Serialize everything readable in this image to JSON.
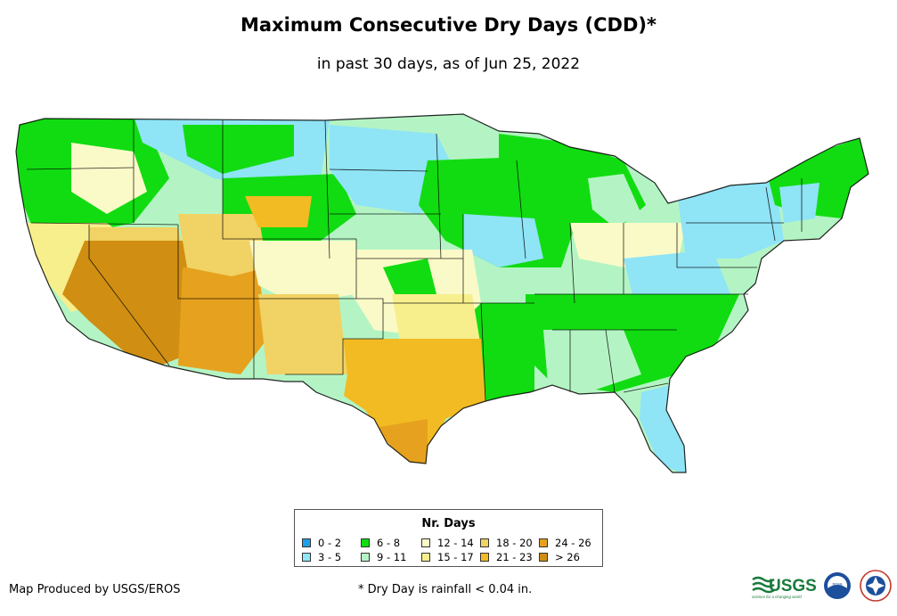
{
  "header": {
    "title": "Maximum Consecutive Dry Days (CDD)*",
    "subtitle": "in past 30 days, as of Jun 25, 2022"
  },
  "legend": {
    "title": "Nr. Days",
    "items": [
      {
        "label": "0 - 2",
        "color": "#1f9fe8"
      },
      {
        "label": "3 - 5",
        "color": "#8fe4f6"
      },
      {
        "label": "6 - 8",
        "color": "#11dc11"
      },
      {
        "label": "9 - 11",
        "color": "#b4f4c4"
      },
      {
        "label": "12 - 14",
        "color": "#fafac8"
      },
      {
        "label": "15 - 17",
        "color": "#f7ef8c"
      },
      {
        "label": "18 - 20",
        "color": "#f1d264"
      },
      {
        "label": "21 - 23",
        "color": "#f2bb23"
      },
      {
        "label": "24 - 26",
        "color": "#e6a21e"
      },
      {
        "label": "> 26",
        "color": "#d08e12"
      }
    ]
  },
  "footer": {
    "credit": "Map Produced by USGS/EROS",
    "footnote": "* Dry Day is rainfall < 0.04 in."
  },
  "logos": {
    "usgs_text": "USGS",
    "usgs_tagline": "science for a changing world",
    "noaa_text": "noaa"
  }
}
